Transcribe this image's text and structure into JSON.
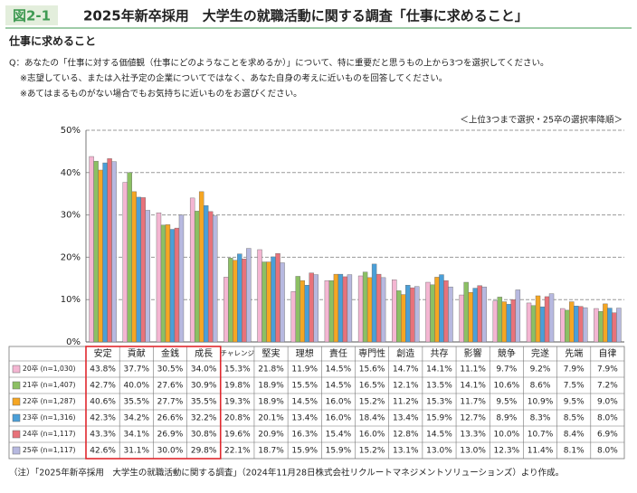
{
  "chart_data": {
    "type": "bar",
    "figure_label": "図2-1",
    "title": "2025年新卒採用　大学生の就職活動に関する調査「仕事に求めること」",
    "subtitle": "仕事に求めること",
    "question": [
      "Q：あなたの「仕事に対する価値観（仕事にどのようなことを求めるか）」について、特に重要だと思うもの上から3つを選択してください。",
      "※志望している、または入社予定の企業についてではなく、あなた自身の考えに近いものを回答してください。",
      "※あてはまるものがない場合でもお気持ちに近いものをお選びください。"
    ],
    "note": "＜上位3つまで選択・25卒の選択率降順＞",
    "source": "（注）「2025年新卒採用　大学生の就職活動に関する調査」（2024年11月28日株式会社リクルートマネジメントソリューションズ）より作成。",
    "categories": [
      "安定",
      "貢献",
      "金銭",
      "成長",
      "チャレンジ",
      "堅実",
      "理想",
      "責任",
      "専門性",
      "創造",
      "共存",
      "影響",
      "競争",
      "完遂",
      "先端",
      "自律"
    ],
    "ylim": [
      0,
      50
    ],
    "yticks": [
      {
        "value": 0,
        "label": "0%"
      },
      {
        "value": 10,
        "label": "10%"
      },
      {
        "value": 20,
        "label": "20%"
      },
      {
        "value": 30,
        "label": "30%"
      },
      {
        "value": 40,
        "label": "40%"
      },
      {
        "value": 50,
        "label": "50%"
      }
    ],
    "grid": true,
    "series": [
      {
        "name": "20卒 (n=1,030)",
        "color": "#f4b6d2",
        "values": [
          43.8,
          37.7,
          30.5,
          34.0,
          15.3,
          21.8,
          11.9,
          14.5,
          15.6,
          14.7,
          14.1,
          11.1,
          9.7,
          9.2,
          7.9,
          7.9
        ],
        "value_labels": [
          "43.8%",
          "37.7%",
          "30.5%",
          "34.0%",
          "15.3%",
          "21.8%",
          "11.9%",
          "14.5%",
          "15.6%",
          "14.7%",
          "14.1%",
          "11.1%",
          "9.7%",
          "9.2%",
          "7.9%",
          "7.9%"
        ]
      },
      {
        "name": "21卒 (n=1,407)",
        "color": "#8cc063",
        "values": [
          42.7,
          40.0,
          27.6,
          30.9,
          19.8,
          18.9,
          15.5,
          14.5,
          16.5,
          12.1,
          13.5,
          14.1,
          10.6,
          8.6,
          7.5,
          7.2
        ],
        "value_labels": [
          "42.7%",
          "40.0%",
          "27.6%",
          "30.9%",
          "19.8%",
          "18.9%",
          "15.5%",
          "14.5%",
          "16.5%",
          "12.1%",
          "13.5%",
          "14.1%",
          "10.6%",
          "8.6%",
          "7.5%",
          "7.2%"
        ]
      },
      {
        "name": "22卒 (n=1,287)",
        "color": "#f5a623",
        "values": [
          40.6,
          35.5,
          27.7,
          35.5,
          19.3,
          18.9,
          14.5,
          16.0,
          15.2,
          11.2,
          15.3,
          11.7,
          9.5,
          10.9,
          9.5,
          9.0
        ],
        "value_labels": [
          "40.6%",
          "35.5%",
          "27.7%",
          "35.5%",
          "19.3%",
          "18.9%",
          "14.5%",
          "16.0%",
          "15.2%",
          "11.2%",
          "15.3%",
          "11.7%",
          "9.5%",
          "10.9%",
          "9.5%",
          "9.0%"
        ]
      },
      {
        "name": "23卒 (n=1,316)",
        "color": "#4a9fd8",
        "values": [
          42.3,
          34.2,
          26.6,
          32.2,
          20.8,
          20.1,
          13.4,
          16.0,
          18.4,
          13.4,
          15.9,
          12.7,
          8.9,
          8.3,
          8.5,
          8.0
        ],
        "value_labels": [
          "42.3%",
          "34.2%",
          "26.6%",
          "32.2%",
          "20.8%",
          "20.1%",
          "13.4%",
          "16.0%",
          "18.4%",
          "13.4%",
          "15.9%",
          "12.7%",
          "8.9%",
          "8.3%",
          "8.5%",
          "8.0%"
        ]
      },
      {
        "name": "24卒 (n=1,117)",
        "color": "#e8727a",
        "values": [
          43.3,
          34.1,
          26.9,
          30.8,
          19.6,
          20.9,
          16.3,
          15.4,
          16.0,
          12.8,
          14.5,
          13.3,
          10.0,
          10.7,
          8.4,
          6.9
        ],
        "value_labels": [
          "43.3%",
          "34.1%",
          "26.9%",
          "30.8%",
          "19.6%",
          "20.9%",
          "16.3%",
          "15.4%",
          "16.0%",
          "12.8%",
          "14.5%",
          "13.3%",
          "10.0%",
          "10.7%",
          "8.4%",
          "6.9%"
        ]
      },
      {
        "name": "25卒 (n=1,117)",
        "color": "#b7b9e0",
        "values": [
          42.6,
          31.1,
          30.0,
          29.8,
          22.1,
          18.7,
          15.9,
          15.9,
          15.2,
          13.1,
          13.0,
          13.0,
          12.3,
          11.4,
          8.1,
          8.0
        ],
        "value_labels": [
          "42.6%",
          "31.1%",
          "30.0%",
          "29.8%",
          "22.1%",
          "18.7%",
          "15.9%",
          "15.9%",
          "15.2%",
          "13.1%",
          "13.0%",
          "13.0%",
          "12.3%",
          "11.4%",
          "8.1%",
          "8.0%"
        ]
      }
    ]
  }
}
